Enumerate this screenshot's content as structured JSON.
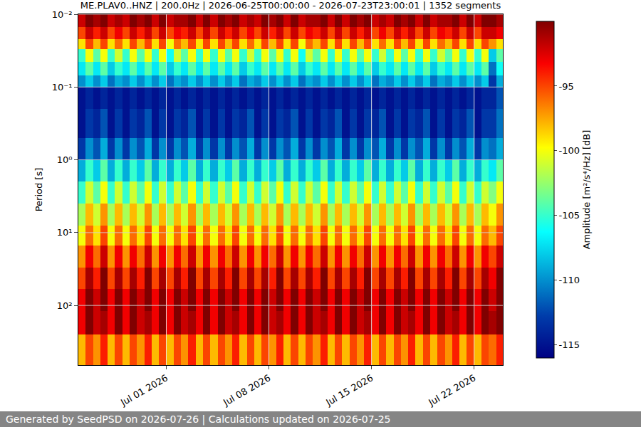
{
  "chart_data": {
    "type": "heatmap",
    "title": "ME.PLAV0..HNZ | 200.0Hz | 2026-06-25T00:00:00 - 2026-07-23T23:00:01 | 1352 segments",
    "y_label": "Period [s]",
    "colorbar_title": "Amplitude [m²/s⁴/Hz] [dB]",
    "footer": "Generated by SeedPSD on 2026-07-26 | Calculations updated on 2026-07-25",
    "log": "y",
    "grid": true,
    "xlim": [
      "2026-06-25 00:00:00",
      "2026-07-23 23:00:01"
    ],
    "xticks": [
      {
        "value": "2026-07-01",
        "label": "Jul 01 2026"
      },
      {
        "value": "2026-07-08",
        "label": "Jul 08 2026"
      },
      {
        "value": "2026-07-15",
        "label": "Jul 15 2026"
      },
      {
        "value": "2026-07-22",
        "label": "Jul 22 2026"
      }
    ],
    "ylim": [
      0.01,
      660
    ],
    "yticks": [
      {
        "value": 0.01,
        "label": "10⁻²"
      },
      {
        "value": 0.1,
        "label": "10⁻¹"
      },
      {
        "value": 1,
        "label": "10⁰"
      },
      {
        "value": 10,
        "label": "10¹"
      },
      {
        "value": 100,
        "label": "10²"
      }
    ],
    "zlim": [
      -116,
      -90
    ],
    "zticks": [
      -115,
      -110,
      -105,
      -100,
      -95
    ],
    "x": [
      "2026-06-25 06:00",
      "2026-06-25 18:00",
      "2026-06-26 06:00",
      "2026-06-26 18:00",
      "2026-06-27 06:00",
      "2026-06-27 18:00",
      "2026-06-28 06:00",
      "2026-06-28 18:00",
      "2026-06-29 06:00",
      "2026-06-29 18:00",
      "2026-06-30 06:00",
      "2026-06-30 18:00",
      "2026-07-01 06:00",
      "2026-07-01 18:00",
      "2026-07-02 06:00",
      "2026-07-02 18:00",
      "2026-07-03 06:00",
      "2026-07-03 18:00",
      "2026-07-04 06:00",
      "2026-07-04 18:00",
      "2026-07-05 06:00",
      "2026-07-05 18:00",
      "2026-07-06 06:00",
      "2026-07-06 18:00",
      "2026-07-07 06:00",
      "2026-07-07 18:00",
      "2026-07-08 06:00",
      "2026-07-08 18:00",
      "2026-07-09 06:00",
      "2026-07-09 18:00",
      "2026-07-10 06:00",
      "2026-07-10 18:00",
      "2026-07-11 06:00",
      "2026-07-11 18:00",
      "2026-07-12 06:00",
      "2026-07-12 18:00",
      "2026-07-13 06:00",
      "2026-07-13 18:00",
      "2026-07-14 06:00",
      "2026-07-14 18:00",
      "2026-07-15 06:00",
      "2026-07-15 18:00",
      "2026-07-16 06:00",
      "2026-07-16 18:00",
      "2026-07-17 06:00",
      "2026-07-17 18:00",
      "2026-07-18 06:00",
      "2026-07-18 18:00",
      "2026-07-19 06:00",
      "2026-07-19 18:00",
      "2026-07-20 06:00",
      "2026-07-20 18:00",
      "2026-07-21 06:00",
      "2026-07-21 18:00",
      "2026-07-22 06:00",
      "2026-07-22 18:00",
      "2026-07-23 06:00",
      "2026-07-23 18:00"
    ],
    "period_edges": [
      0.01,
      0.015,
      0.022,
      0.03,
      0.045,
      0.07,
      0.1,
      0.2,
      0.5,
      1,
      2,
      4,
      8,
      15,
      30,
      60,
      120,
      250,
      660
    ],
    "z": [
      [
        -92,
        -90,
        -91,
        -90,
        -92,
        -91,
        -92,
        -90,
        -91,
        -90,
        -92,
        -90,
        -92,
        -91,
        -91,
        -90,
        -92,
        -90,
        -92,
        -90,
        -91,
        -90,
        -92,
        -91,
        -92,
        -90,
        -91,
        -90,
        -92,
        -90,
        -92,
        -91,
        -91,
        -90,
        -92,
        -90,
        -92,
        -90,
        -91,
        -90,
        -92,
        -91,
        -92,
        -90,
        -91,
        -90,
        -92,
        -90,
        -92,
        -91,
        -91,
        -90,
        -92,
        -90,
        -92,
        -90,
        -90,
        -91
      ],
      [
        -95,
        -92,
        -94,
        -92,
        -95,
        -93,
        -95,
        -92,
        -94,
        -92,
        -95,
        -92,
        -95,
        -93,
        -94,
        -92,
        -95,
        -92,
        -95,
        -92,
        -94,
        -92,
        -95,
        -93,
        -95,
        -92,
        -94,
        -92,
        -95,
        -92,
        -95,
        -93,
        -94,
        -92,
        -95,
        -92,
        -95,
        -92,
        -94,
        -92,
        -95,
        -93,
        -95,
        -92,
        -94,
        -92,
        -95,
        -92,
        -95,
        -93,
        -94,
        -92,
        -95,
        -92,
        -95,
        -92,
        -92,
        -93
      ],
      [
        -99,
        -95,
        -98,
        -95,
        -99,
        -96,
        -99,
        -95,
        -98,
        -95,
        -99,
        -95,
        -100,
        -96,
        -98,
        -95,
        -99,
        -95,
        -99,
        -95,
        -98,
        -95,
        -99,
        -96,
        -99,
        -95,
        -98,
        -95,
        -99,
        -95,
        -100,
        -96,
        -98,
        -95,
        -99,
        -95,
        -99,
        -95,
        -98,
        -95,
        -99,
        -96,
        -99,
        -95,
        -98,
        -95,
        -99,
        -95,
        -99,
        -96,
        -98,
        -95,
        -99,
        -95,
        -99,
        -95,
        -97,
        -99
      ],
      [
        -105,
        -100,
        -104,
        -100,
        -105,
        -101,
        -105,
        -100,
        -104,
        -100,
        -105,
        -100,
        -106,
        -101,
        -104,
        -100,
        -105,
        -100,
        -105,
        -100,
        -104,
        -100,
        -105,
        -101,
        -105,
        -100,
        -104,
        -100,
        -105,
        -100,
        -106,
        -101,
        -104,
        -100,
        -105,
        -100,
        -105,
        -100,
        -104,
        -100,
        -105,
        -101,
        -105,
        -100,
        -104,
        -100,
        -105,
        -100,
        -105,
        -101,
        -104,
        -100,
        -105,
        -100,
        -105,
        -100,
        -108,
        -104
      ],
      [
        -107,
        -104,
        -107,
        -104,
        -108,
        -105,
        -107,
        -104,
        -107,
        -104,
        -107,
        -104,
        -108,
        -105,
        -107,
        -104,
        -107,
        -104,
        -107,
        -104,
        -107,
        -104,
        -108,
        -105,
        -107,
        -104,
        -107,
        -104,
        -107,
        -104,
        -108,
        -105,
        -107,
        -104,
        -107,
        -104,
        -107,
        -104,
        -107,
        -104,
        -108,
        -105,
        -107,
        -104,
        -107,
        -104,
        -107,
        -104,
        -108,
        -105,
        -107,
        -104,
        -107,
        -104,
        -107,
        -104,
        -111,
        -106
      ],
      [
        -110,
        -108,
        -110,
        -108,
        -111,
        -109,
        -110,
        -108,
        -110,
        -108,
        -110,
        -108,
        -111,
        -109,
        -110,
        -108,
        -110,
        -108,
        -110,
        -108,
        -110,
        -108,
        -111,
        -109,
        -110,
        -108,
        -110,
        -108,
        -110,
        -108,
        -111,
        -109,
        -110,
        -108,
        -110,
        -108,
        -110,
        -108,
        -110,
        -108,
        -111,
        -109,
        -110,
        -108,
        -110,
        -108,
        -110,
        -108,
        -111,
        -109,
        -110,
        -108,
        -110,
        -108,
        -110,
        -108,
        -113,
        -109
      ],
      [
        -115,
        -114,
        -115,
        -114,
        -115,
        -114,
        -115,
        -114,
        -115,
        -114,
        -115,
        -114,
        -115,
        -114,
        -115,
        -114,
        -115,
        -114,
        -115,
        -114,
        -115,
        -114,
        -115,
        -114,
        -115,
        -114,
        -115,
        -114,
        -115,
        -114,
        -115,
        -114,
        -115,
        -114,
        -115,
        -114,
        -115,
        -114,
        -115,
        -114,
        -115,
        -114,
        -115,
        -114,
        -115,
        -114,
        -115,
        -114,
        -115,
        -114,
        -115,
        -114,
        -115,
        -114,
        -115,
        -114,
        -114,
        -112
      ],
      [
        -115,
        -113,
        -114,
        -112,
        -115,
        -113,
        -115,
        -113,
        -114,
        -112,
        -115,
        -113,
        -115,
        -113,
        -114,
        -112,
        -115,
        -113,
        -115,
        -113,
        -115,
        -113,
        -114,
        -112,
        -115,
        -113,
        -115,
        -113,
        -114,
        -112,
        -115,
        -113,
        -115,
        -113,
        -114,
        -112,
        -115,
        -113,
        -115,
        -113,
        -114,
        -112,
        -115,
        -113,
        -115,
        -113,
        -114,
        -112,
        -115,
        -113,
        -115,
        -113,
        -114,
        -112,
        -115,
        -113,
        -113,
        -111
      ],
      [
        -113,
        -110,
        -112,
        -109,
        -113,
        -110,
        -113,
        -110,
        -112,
        -109,
        -113,
        -110,
        -113,
        -110,
        -112,
        -109,
        -113,
        -110,
        -113,
        -110,
        -113,
        -110,
        -112,
        -109,
        -113,
        -110,
        -113,
        -110,
        -112,
        -109,
        -113,
        -110,
        -113,
        -110,
        -112,
        -109,
        -113,
        -110,
        -113,
        -110,
        -112,
        -109,
        -113,
        -110,
        -113,
        -110,
        -112,
        -109,
        -113,
        -110,
        -113,
        -110,
        -112,
        -109,
        -113,
        -110,
        -111,
        -109
      ],
      [
        -109,
        -105,
        -108,
        -104,
        -109,
        -105,
        -109,
        -105,
        -108,
        -104,
        -109,
        -105,
        -109,
        -105,
        -108,
        -104,
        -109,
        -105,
        -109,
        -105,
        -108,
        -104,
        -109,
        -105,
        -109,
        -105,
        -108,
        -104,
        -109,
        -105,
        -109,
        -105,
        -108,
        -104,
        -109,
        -105,
        -109,
        -105,
        -108,
        -104,
        -109,
        -105,
        -109,
        -105,
        -108,
        -104,
        -109,
        -105,
        -109,
        -105,
        -108,
        -104,
        -109,
        -105,
        -109,
        -105,
        -107,
        -104
      ],
      [
        -105,
        -101,
        -104,
        -100,
        -105,
        -101,
        -105,
        -101,
        -104,
        -100,
        -105,
        -101,
        -105,
        -101,
        -104,
        -100,
        -105,
        -101,
        -105,
        -101,
        -104,
        -100,
        -105,
        -101,
        -105,
        -101,
        -104,
        -100,
        -105,
        -101,
        -105,
        -101,
        -104,
        -100,
        -105,
        -101,
        -105,
        -101,
        -104,
        -100,
        -105,
        -101,
        -105,
        -101,
        -104,
        -100,
        -105,
        -101,
        -105,
        -101,
        -104,
        -100,
        -105,
        -101,
        -105,
        -101,
        -103,
        -100
      ],
      [
        -102,
        -98,
        -101,
        -97,
        -102,
        -98,
        -102,
        -98,
        -101,
        -97,
        -102,
        -98,
        -102,
        -98,
        -101,
        -97,
        -102,
        -98,
        -102,
        -98,
        -101,
        -97,
        -102,
        -98,
        -102,
        -98,
        -101,
        -97,
        -102,
        -98,
        -102,
        -98,
        -101,
        -97,
        -102,
        -98,
        -102,
        -98,
        -101,
        -97,
        -102,
        -98,
        -102,
        -98,
        -101,
        -97,
        -102,
        -98,
        -102,
        -98,
        -101,
        -97,
        -102,
        -98,
        -102,
        -98,
        -100,
        -97
      ],
      [
        -100,
        -96,
        -99,
        -95,
        -100,
        -96,
        -100,
        -96,
        -99,
        -95,
        -100,
        -96,
        -100,
        -96,
        -99,
        -95,
        -100,
        -96,
        -100,
        -96,
        -99,
        -95,
        -100,
        -96,
        -100,
        -96,
        -99,
        -95,
        -100,
        -96,
        -100,
        -96,
        -99,
        -95,
        -100,
        -96,
        -100,
        -96,
        -99,
        -95,
        -100,
        -96,
        -100,
        -96,
        -99,
        -95,
        -100,
        -96,
        -100,
        -96,
        -99,
        -95,
        -100,
        -96,
        -100,
        -96,
        -98,
        -95
      ],
      [
        -97,
        -93,
        -96,
        -92,
        -97,
        -93,
        -97,
        -93,
        -96,
        -92,
        -97,
        -93,
        -97,
        -93,
        -96,
        -92,
        -97,
        -93,
        -97,
        -93,
        -96,
        -92,
        -97,
        -93,
        -97,
        -93,
        -96,
        -92,
        -97,
        -93,
        -97,
        -93,
        -96,
        -92,
        -97,
        -93,
        -97,
        -93,
        -96,
        -92,
        -97,
        -93,
        -97,
        -93,
        -96,
        -92,
        -97,
        -93,
        -97,
        -93,
        -96,
        -92,
        -97,
        -93,
        -97,
        -93,
        -95,
        -92
      ],
      [
        -95,
        -91,
        -94,
        -90,
        -95,
        -91,
        -95,
        -91,
        -94,
        -90,
        -95,
        -91,
        -95,
        -91,
        -94,
        -90,
        -95,
        -91,
        -95,
        -91,
        -94,
        -90,
        -95,
        -91,
        -95,
        -91,
        -94,
        -90,
        -95,
        -91,
        -95,
        -91,
        -94,
        -90,
        -95,
        -91,
        -95,
        -91,
        -94,
        -90,
        -95,
        -91,
        -95,
        -91,
        -94,
        -90,
        -95,
        -91,
        -95,
        -91,
        -94,
        -90,
        -95,
        -91,
        -95,
        -91,
        -93,
        -90
      ],
      [
        -93,
        -90,
        -92,
        -90,
        -93,
        -90,
        -93,
        -90,
        -92,
        -90,
        -93,
        -90,
        -93,
        -90,
        -92,
        -90,
        -93,
        -90,
        -93,
        -90,
        -92,
        -90,
        -93,
        -90,
        -93,
        -90,
        -92,
        -90,
        -93,
        -90,
        -93,
        -90,
        -92,
        -90,
        -93,
        -90,
        -93,
        -90,
        -92,
        -90,
        -93,
        -90,
        -93,
        -90,
        -92,
        -90,
        -93,
        -90,
        -93,
        -90,
        -92,
        -90,
        -93,
        -90,
        -93,
        -90,
        -92,
        -90
      ],
      [
        -93,
        -90,
        -92,
        -91,
        -93,
        -90,
        -93,
        -90,
        -92,
        -91,
        -93,
        -90,
        -93,
        -90,
        -92,
        -91,
        -93,
        -90,
        -93,
        -90,
        -92,
        -91,
        -93,
        -90,
        -93,
        -90,
        -92,
        -91,
        -93,
        -90,
        -93,
        -90,
        -92,
        -91,
        -93,
        -90,
        -93,
        -90,
        -92,
        -91,
        -93,
        -90,
        -93,
        -90,
        -92,
        -91,
        -93,
        -90,
        -93,
        -90,
        -92,
        -91,
        -93,
        -90,
        -93,
        -90,
        -91,
        -90
      ],
      [
        -98,
        -95,
        -97,
        -94,
        -98,
        -95,
        -98,
        -95,
        -97,
        -94,
        -98,
        -95,
        -98,
        -95,
        -97,
        -94,
        -98,
        -95,
        -98,
        -95,
        -97,
        -94,
        -98,
        -95,
        -98,
        -95,
        -97,
        -94,
        -98,
        -95,
        -98,
        -95,
        -97,
        -94,
        -98,
        -95,
        -98,
        -95,
        -97,
        -94,
        -98,
        -95,
        -98,
        -95,
        -97,
        -94,
        -98,
        -95,
        -98,
        -95,
        -97,
        -94,
        -98,
        -95,
        -98,
        -95,
        -96,
        -94
      ]
    ]
  }
}
